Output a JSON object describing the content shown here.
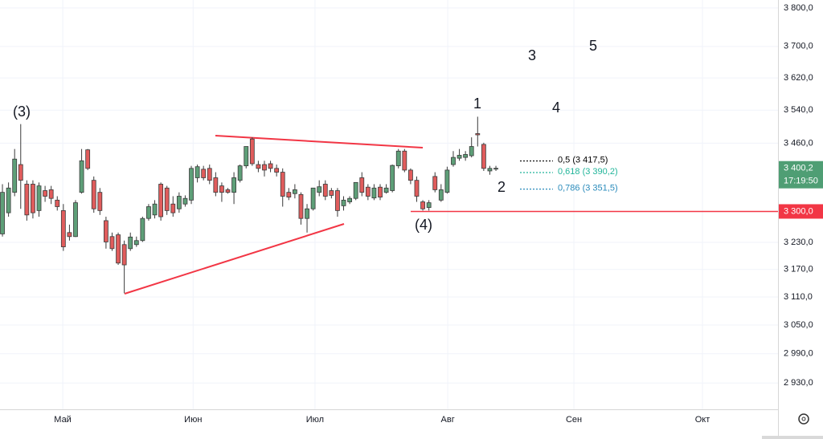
{
  "chart_data": {
    "type": "candlestick",
    "categories": [
      null,
      null,
      null,
      null,
      null,
      null,
      null,
      null,
      null,
      null,
      null,
      null,
      null,
      null,
      null,
      null,
      null,
      null,
      null,
      null,
      null,
      null,
      null,
      null,
      null,
      null,
      null,
      null,
      null,
      null,
      null,
      null,
      null,
      null,
      null,
      null,
      null,
      null,
      null,
      null,
      null,
      null,
      null,
      null,
      null,
      null,
      null,
      null,
      null,
      null,
      null,
      null,
      null,
      null,
      null,
      null,
      null,
      null,
      null,
      null,
      null,
      null,
      null,
      null,
      null,
      null,
      null,
      null,
      null,
      null,
      null,
      null,
      null,
      null,
      null,
      null,
      null,
      null,
      null,
      null,
      null,
      null
    ],
    "open": [
      3249,
      3297,
      3344,
      3409,
      3363,
      3363,
      3302,
      3348,
      3350,
      3326,
      3302,
      3252,
      3243,
      3344,
      3444,
      3372,
      3344,
      3279,
      3243,
      3247,
      3225,
      3216,
      3225,
      3234,
      3284,
      3292,
      3363,
      3354,
      3317,
      3306,
      3317,
      3326,
      3378,
      3398,
      3400,
      3378,
      3359,
      3350,
      3344,
      3372,
      3406,
      3470,
      3409,
      3409,
      3411,
      3400,
      3391,
      3344,
      3341,
      3339,
      3284,
      3306,
      3344,
      3363,
      3348,
      3348,
      3313,
      3322,
      3330,
      3378,
      3356,
      3331,
      3356,
      3344,
      3348,
      3406,
      3441,
      3396,
      3372,
      3322,
      3309,
      3381,
      3326,
      3344,
      3409,
      3424,
      3426,
      3430,
      3483,
      3457,
      3394,
      3400
    ],
    "high": [
      3363,
      3367,
      3446,
      3506,
      3372,
      3372,
      3367,
      3359,
      3359,
      3335,
      3317,
      3270,
      3326,
      3446,
      3446,
      3381,
      3354,
      3288,
      3252,
      3252,
      3234,
      3252,
      3243,
      3288,
      3317,
      3326,
      3367,
      3359,
      3335,
      3344,
      3337,
      3406,
      3409,
      3406,
      3409,
      3391,
      3367,
      3354,
      3391,
      3409,
      3452,
      3474,
      3418,
      3418,
      3418,
      3409,
      3400,
      3354,
      3363,
      3344,
      3317,
      3354,
      3372,
      3372,
      3354,
      3354,
      3335,
      3335,
      3367,
      3391,
      3363,
      3363,
      3363,
      3363,
      3409,
      3446,
      3446,
      3400,
      3381,
      3326,
      3326,
      3391,
      3363,
      3404,
      3441,
      3446,
      3441,
      3474,
      3524,
      3461,
      3406,
      3406
    ],
    "low": [
      3243,
      3288,
      3335,
      3306,
      3279,
      3284,
      3288,
      3322,
      3317,
      3302,
      3211,
      3234,
      3242,
      3341,
      3396,
      3297,
      3292,
      3216,
      3211,
      3180,
      3118,
      3211,
      3220,
      3231,
      3279,
      3284,
      3279,
      3292,
      3288,
      3297,
      3311,
      3317,
      3367,
      3372,
      3363,
      3335,
      3322,
      3341,
      3317,
      3367,
      3400,
      3406,
      3391,
      3381,
      3391,
      3381,
      3311,
      3326,
      3330,
      3270,
      3252,
      3302,
      3335,
      3326,
      3330,
      3288,
      3302,
      3317,
      3326,
      3335,
      3326,
      3326,
      3326,
      3341,
      3344,
      3400,
      3391,
      3363,
      3322,
      3302,
      3302,
      3344,
      3322,
      3341,
      3404,
      3418,
      3418,
      3426,
      3452,
      3394,
      3385,
      3394
    ],
    "close": [
      3344,
      3354,
      3422,
      3372,
      3292,
      3297,
      3359,
      3335,
      3330,
      3311,
      3220,
      3243,
      3320,
      3418,
      3400,
      3306,
      3302,
      3231,
      3216,
      3184,
      3180,
      3242,
      3234,
      3284,
      3311,
      3317,
      3288,
      3302,
      3297,
      3335,
      3330,
      3400,
      3404,
      3378,
      3372,
      3344,
      3344,
      3344,
      3378,
      3406,
      3452,
      3411,
      3400,
      3396,
      3400,
      3391,
      3335,
      3333,
      3350,
      3284,
      3306,
      3354,
      3357,
      3335,
      3337,
      3302,
      3326,
      3330,
      3367,
      3344,
      3335,
      3354,
      3333,
      3354,
      3407,
      3441,
      3396,
      3372,
      3335,
      3306,
      3320,
      3350,
      3350,
      3396,
      3426,
      3431,
      3433,
      3452,
      3480,
      3400,
      3400,
      3400.2
    ],
    "up_color": "#5e9f78",
    "down_color": "#e05c5c",
    "xlim": [
      -0.4,
      127.3
    ],
    "xticks": [
      {
        "value": 9.9,
        "label": "Май"
      },
      {
        "value": 31.3,
        "label": "Июн"
      },
      {
        "value": 51.3,
        "label": "Июл"
      },
      {
        "value": 73.1,
        "label": "Авг"
      },
      {
        "value": 93.8,
        "label": "Сен"
      },
      {
        "value": 114.9,
        "label": "Окт"
      }
    ],
    "ylim": [
      2877,
      3821
    ],
    "log_scale": true,
    "grid": true,
    "yticks": [
      {
        "value": 2930,
        "label": "2 930,0"
      },
      {
        "value": 2990,
        "label": "2 990,0"
      },
      {
        "value": 3050,
        "label": "3 050,0"
      },
      {
        "value": 3110,
        "label": "3 110,0"
      },
      {
        "value": 3170,
        "label": "3 170,0"
      },
      {
        "value": 3230,
        "label": "3 230,0"
      },
      {
        "value": 3460,
        "label": "3 460,0"
      },
      {
        "value": 3540,
        "label": "3 540,0"
      },
      {
        "value": 3620,
        "label": "3 620,0"
      },
      {
        "value": 3700,
        "label": "3 700,0"
      },
      {
        "value": 3800,
        "label": "3 800,0"
      }
    ],
    "last_price": {
      "value": 3400.2,
      "label": "3 400,2",
      "time": "17:19:50",
      "color": "#4f9e74"
    },
    "level": {
      "value": 3300,
      "label": "3 300,0",
      "color": "#f23645"
    },
    "fib_levels": [
      {
        "value": 3417.5,
        "label": "0,5 (3 417,5)",
        "color": "#000000"
      },
      {
        "value": 3390.2,
        "label": "0,618 (3 390,2)",
        "color": "#22b59a"
      },
      {
        "value": 3351.5,
        "label": "0,786 (3 351,5)",
        "color": "#2a8bbb"
      }
    ],
    "annotations": [
      "(3)",
      "1",
      "3",
      "5",
      "4",
      "2",
      "(4)"
    ]
  }
}
